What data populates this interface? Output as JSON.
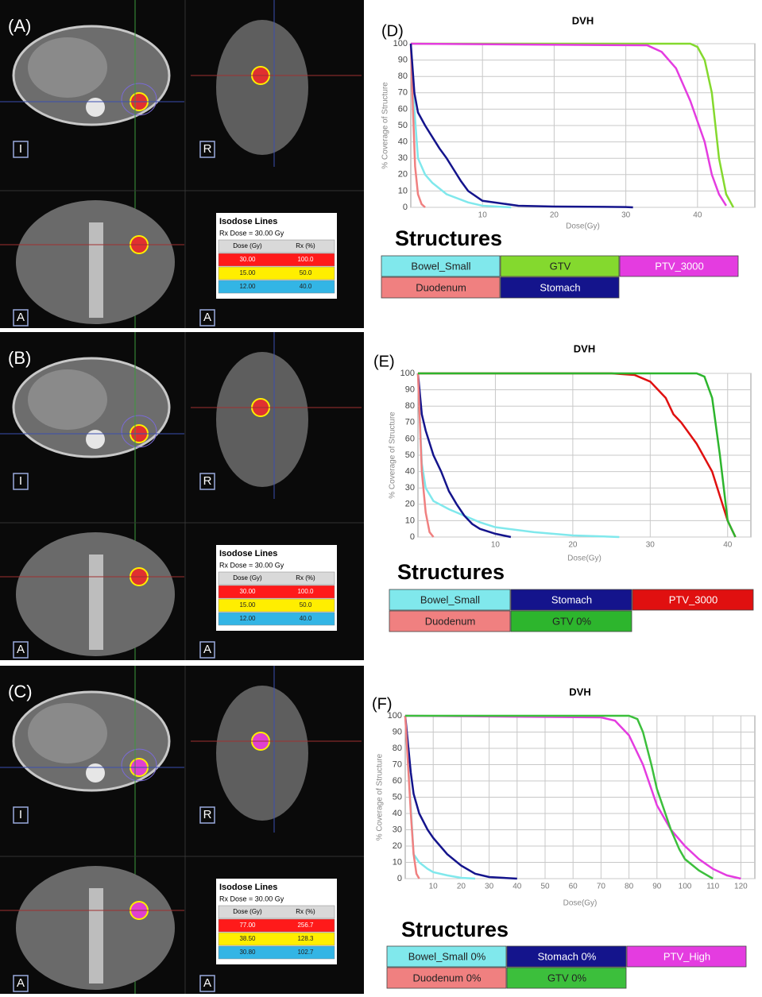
{
  "ct_panels": [
    {
      "label": "(A)",
      "views": [
        "I",
        "R",
        "A",
        "A"
      ],
      "isodose": {
        "title": "Isodose Lines",
        "rx_dose": "Rx Dose = 30.00 Gy",
        "headers": [
          "Dose (Gy)",
          "Rx (%)"
        ],
        "rows": [
          [
            "30.00",
            "100.0"
          ],
          [
            "15.00",
            "50.0"
          ],
          [
            "12.00",
            "40.0"
          ]
        ],
        "row_colors": [
          "#ff1a1a",
          "#ffee00",
          "#33b5e5"
        ]
      }
    },
    {
      "label": "(B)",
      "views": [
        "I",
        "R",
        "A",
        "A"
      ],
      "isodose": {
        "title": "Isodose Lines",
        "rx_dose": "Rx Dose = 30.00 Gy",
        "headers": [
          "Dose (Gy)",
          "Rx (%)"
        ],
        "rows": [
          [
            "30.00",
            "100.0"
          ],
          [
            "15.00",
            "50.0"
          ],
          [
            "12.00",
            "40.0"
          ]
        ],
        "row_colors": [
          "#ff1a1a",
          "#ffee00",
          "#33b5e5"
        ]
      }
    },
    {
      "label": "(C)",
      "views": [
        "I",
        "R",
        "A",
        "A"
      ],
      "isodose": {
        "title": "Isodose Lines",
        "rx_dose": "Rx Dose = 30.00 Gy",
        "headers": [
          "Dose (Gy)",
          "Rx (%)"
        ],
        "rows": [
          [
            "77.00",
            "256.7"
          ],
          [
            "38.50",
            "128.3"
          ],
          [
            "30.80",
            "102.7"
          ]
        ],
        "row_colors": [
          "#ff1a1a",
          "#ffee00",
          "#33b5e5"
        ]
      }
    }
  ],
  "chart_data": [
    {
      "type": "line",
      "panel_label": "(D)",
      "title": "DVH",
      "x_label": "Dose(Gy)",
      "y_label": "% Coverage of Structure",
      "legend_title": "Structures",
      "xlim": [
        0,
        48
      ],
      "ylim": [
        0,
        100
      ],
      "xticks": [
        10,
        20,
        30,
        40
      ],
      "yticks": [
        0,
        10,
        20,
        30,
        40,
        50,
        60,
        70,
        80,
        90,
        100
      ],
      "grid": true,
      "series": [
        {
          "name": "Bowel_Small",
          "color": "#80e8ec",
          "x": [
            0,
            0.5,
            1,
            2,
            3,
            5,
            8,
            10,
            12,
            14
          ],
          "values": [
            100,
            60,
            30,
            20,
            15,
            8,
            3,
            1,
            0.5,
            0
          ]
        },
        {
          "name": "GTV",
          "color": "#84d92e",
          "x": [
            0,
            38,
            39,
            40,
            41,
            42,
            43,
            44,
            45
          ],
          "values": [
            100,
            100,
            100,
            98,
            90,
            70,
            30,
            8,
            0
          ]
        },
        {
          "name": "PTV_3000",
          "color": "#e43ce0",
          "x": [
            0,
            33,
            35,
            37,
            39,
            41,
            42,
            43,
            44
          ],
          "values": [
            100,
            99,
            95,
            85,
            65,
            40,
            20,
            8,
            1
          ]
        },
        {
          "name": "Duodenum",
          "color": "#f08080",
          "x": [
            0,
            0.3,
            0.6,
            1,
            1.5,
            2
          ],
          "values": [
            100,
            60,
            25,
            8,
            2,
            0
          ]
        },
        {
          "name": "Stomach",
          "color": "#14148c",
          "x": [
            0,
            0.5,
            1,
            2,
            3,
            4,
            5,
            6,
            7,
            8,
            10,
            15,
            20,
            30,
            31
          ],
          "values": [
            100,
            70,
            58,
            50,
            43,
            36,
            30,
            23,
            16,
            10,
            4,
            1,
            0.5,
            0.2,
            0
          ]
        }
      ]
    },
    {
      "type": "line",
      "panel_label": "(E)",
      "title": "DVH",
      "x_label": "Dose(Gy)",
      "y_label": "% Coverage of Structure",
      "legend_title": "Structures",
      "xlim": [
        0,
        43
      ],
      "ylim": [
        0,
        100
      ],
      "xticks": [
        10,
        20,
        30,
        40
      ],
      "yticks": [
        0,
        10,
        20,
        30,
        40,
        50,
        60,
        70,
        80,
        90,
        100
      ],
      "grid": true,
      "series": [
        {
          "name": "Bowel_Small",
          "color": "#80e8ec",
          "x": [
            0,
            0.5,
            1,
            2,
            4,
            6,
            8,
            10,
            15,
            20,
            26
          ],
          "values": [
            100,
            45,
            30,
            22,
            17,
            13,
            9,
            6,
            3,
            1,
            0
          ]
        },
        {
          "name": "Stomach",
          "color": "#14148c",
          "x": [
            0,
            0.5,
            1,
            2,
            3,
            4,
            5,
            6,
            7,
            8,
            10,
            12
          ],
          "values": [
            100,
            75,
            65,
            50,
            40,
            28,
            20,
            13,
            8,
            5,
            2,
            0
          ]
        },
        {
          "name": "PTV_3000",
          "color": "#e01010",
          "x": [
            0,
            25,
            28,
            30,
            32,
            33,
            34,
            36,
            38,
            39,
            40,
            41
          ],
          "values": [
            100,
            100,
            99,
            95,
            85,
            75,
            70,
            57,
            40,
            25,
            10,
            0
          ]
        },
        {
          "name": "Duodenum",
          "color": "#f08080",
          "x": [
            0,
            0.5,
            1,
            1.5,
            2
          ],
          "values": [
            100,
            40,
            15,
            3,
            0
          ]
        },
        {
          "name": "GTV 0%",
          "color": "#2db52d",
          "x": [
            0,
            36,
            37,
            38,
            39,
            40,
            41
          ],
          "values": [
            100,
            100,
            98,
            85,
            50,
            10,
            0
          ]
        }
      ]
    },
    {
      "type": "line",
      "panel_label": "(F)",
      "title": "DVH",
      "x_label": "Dose(Gy)",
      "y_label": "% Coverage of Structure",
      "legend_title": "Structures",
      "xlim": [
        0,
        125
      ],
      "ylim": [
        0,
        100
      ],
      "xticks": [
        10,
        20,
        30,
        40,
        50,
        60,
        70,
        80,
        90,
        100,
        110,
        120
      ],
      "yticks": [
        0,
        10,
        20,
        30,
        40,
        50,
        60,
        70,
        80,
        90,
        100
      ],
      "grid": true,
      "series": [
        {
          "name": "Bowel_Small 0%",
          "color": "#80e8ec",
          "x": [
            0,
            3,
            5,
            8,
            10,
            15,
            20,
            25
          ],
          "values": [
            100,
            15,
            10,
            6,
            4,
            2,
            0.5,
            0
          ]
        },
        {
          "name": "Stomach 0%",
          "color": "#14148c",
          "x": [
            0,
            2,
            3,
            5,
            8,
            10,
            15,
            20,
            25,
            30,
            40
          ],
          "values": [
            100,
            65,
            52,
            40,
            30,
            25,
            15,
            8,
            3,
            1,
            0
          ]
        },
        {
          "name": "PTV_High",
          "color": "#e43ce0",
          "x": [
            0,
            70,
            75,
            80,
            85,
            90,
            95,
            100,
            105,
            110,
            115,
            120
          ],
          "values": [
            100,
            99,
            97,
            88,
            70,
            45,
            30,
            20,
            12,
            6,
            2,
            0
          ]
        },
        {
          "name": "Duodenum 0%",
          "color": "#f08080",
          "x": [
            0,
            2,
            3,
            4,
            5
          ],
          "values": [
            100,
            40,
            15,
            3,
            0
          ]
        },
        {
          "name": "GTV 0%",
          "color": "#3cbf3c",
          "x": [
            0,
            80,
            83,
            85,
            88,
            90,
            93,
            95,
            98,
            100,
            105,
            110
          ],
          "values": [
            100,
            100,
            98,
            90,
            70,
            55,
            40,
            30,
            18,
            12,
            5,
            0
          ]
        }
      ]
    }
  ]
}
